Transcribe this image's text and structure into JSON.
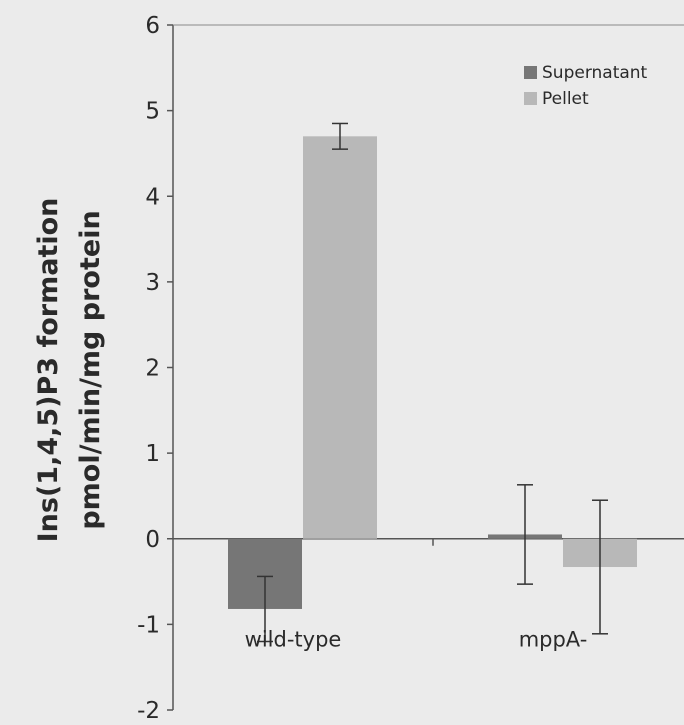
{
  "chart_data": {
    "type": "bar",
    "categories": [
      "wild-type",
      "mppA-"
    ],
    "series": [
      {
        "name": "Supernatant",
        "values": [
          -0.82,
          0.05
        ],
        "errors": [
          0.38,
          0.58
        ]
      },
      {
        "name": "Pellet",
        "values": [
          4.7,
          -0.33
        ],
        "errors": [
          0.15,
          0.78
        ]
      }
    ],
    "ylabel_line1": "Ins(1,4,5)P3 formation",
    "ylabel_line2": "pmol/min/mg protein",
    "ylim": [
      -2,
      6
    ],
    "yticks": [
      "6",
      "5",
      "4",
      "3",
      "2",
      "1",
      "0",
      "-1",
      "-2"
    ],
    "legend_position": "top-right",
    "grid": false
  },
  "colors": {
    "supernatant": "#767676",
    "pellet": "#b8b8b8",
    "axis": "#555555",
    "text": "#2a2a2a",
    "background": "#ebebeb"
  }
}
